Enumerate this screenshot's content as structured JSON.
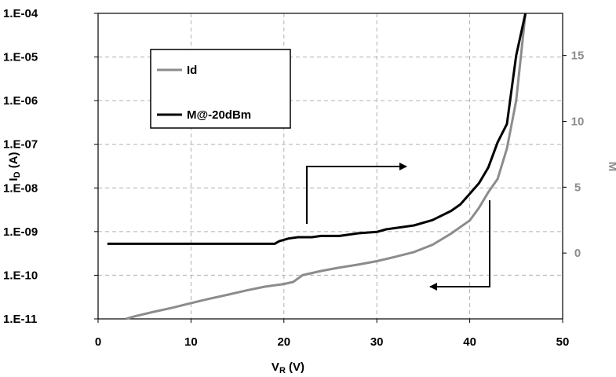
{
  "chart_data": {
    "type": "line",
    "title": "",
    "x_axis": {
      "label_main": "V",
      "label_sub": "R",
      "label_unit": " (V)",
      "range": [
        0,
        50
      ],
      "ticks": [
        0,
        10,
        20,
        30,
        40,
        50
      ],
      "tick_labels": [
        "0",
        "10",
        "20",
        "30",
        "40",
        "50"
      ]
    },
    "y_left": {
      "label_main": "I",
      "label_sub": "D",
      "label_unit": " (A)",
      "scale": "log",
      "range": [
        1e-11,
        0.0001
      ],
      "ticks": [
        0.0001,
        1e-05,
        1e-06,
        1e-07,
        1e-08,
        1e-09,
        1e-10,
        1e-11
      ],
      "tick_labels": [
        "1.E-04",
        "1.E-05",
        "1.E-06",
        "1.E-07",
        "1.E-08",
        "1.E-09",
        "1.E-10",
        "1.E-11"
      ]
    },
    "y_right": {
      "label": "M",
      "scale": "linear",
      "range": [
        -5,
        18.2
      ],
      "ticks": [
        0,
        5,
        10,
        15
      ],
      "tick_labels": [
        "0",
        "5",
        "10",
        "15"
      ]
    },
    "grid": true,
    "legend_position": "top-left",
    "series": [
      {
        "name": "Id",
        "axis": "left",
        "color": "#8c8c8c",
        "points": [
          [
            3,
            1e-11
          ],
          [
            4,
            1.15e-11
          ],
          [
            6,
            1.45e-11
          ],
          [
            8,
            1.8e-11
          ],
          [
            10,
            2.3e-11
          ],
          [
            12,
            2.9e-11
          ],
          [
            14,
            3.6e-11
          ],
          [
            16,
            4.5e-11
          ],
          [
            18,
            5.5e-11
          ],
          [
            20,
            6.3e-11
          ],
          [
            21,
            7e-11
          ],
          [
            22,
            1e-10
          ],
          [
            24,
            1.25e-10
          ],
          [
            26,
            1.5e-10
          ],
          [
            28,
            1.75e-10
          ],
          [
            30,
            2.1e-10
          ],
          [
            32,
            2.65e-10
          ],
          [
            34,
            3.4e-10
          ],
          [
            36,
            5e-10
          ],
          [
            38,
            9e-10
          ],
          [
            40,
            1.8e-09
          ],
          [
            41,
            3.5e-09
          ],
          [
            42,
            8e-09
          ],
          [
            43,
            1.6e-08
          ],
          [
            44,
            8e-08
          ],
          [
            45,
            1e-06
          ],
          [
            45.5,
            1e-05
          ],
          [
            46,
            0.0001
          ]
        ]
      },
      {
        "name": "M@-20dBm",
        "axis": "right",
        "color": "#000000",
        "points": [
          [
            1,
            0.7
          ],
          [
            10,
            0.7
          ],
          [
            19,
            0.7
          ],
          [
            19.5,
            0.9
          ],
          [
            20.5,
            1.1
          ],
          [
            21.5,
            1.2
          ],
          [
            23,
            1.2
          ],
          [
            24,
            1.3
          ],
          [
            26,
            1.3
          ],
          [
            28,
            1.5
          ],
          [
            30,
            1.6
          ],
          [
            31,
            1.8
          ],
          [
            34,
            2.1
          ],
          [
            36,
            2.5
          ],
          [
            38,
            3.2
          ],
          [
            39,
            3.7
          ],
          [
            40,
            4.5
          ],
          [
            41,
            5.3
          ],
          [
            42,
            6.5
          ],
          [
            43,
            8.4
          ],
          [
            44,
            9.8
          ],
          [
            45,
            15
          ],
          [
            46,
            18.2
          ]
        ]
      }
    ],
    "annotations": [
      {
        "type": "arrow",
        "description": "points right, toward M axis"
      },
      {
        "type": "arrow",
        "description": "points left, toward Id axis"
      }
    ]
  }
}
